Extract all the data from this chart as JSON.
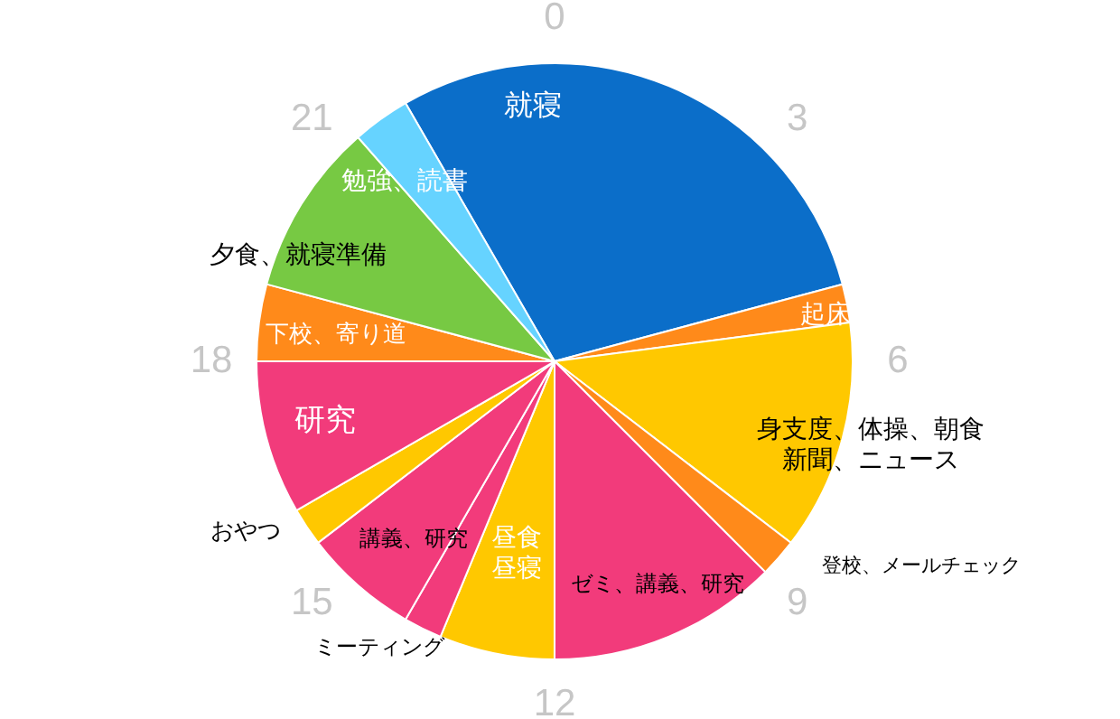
{
  "chart_data": {
    "type": "pie",
    "categories": [
      "就寝",
      "起床",
      "身支度、体操、朝食新聞、ニュース",
      "登校、メールチェック",
      "ゼミ、講義、研究",
      "昼食昼寝",
      "ミーティング",
      "講義、研究",
      "おやつ",
      "研究",
      "下校、寄り道",
      "夕食、就寝準備",
      "勉強、読書"
    ],
    "values": [
      29.17,
      2.08,
      12.5,
      2.08,
      12.5,
      6.25,
      2.08,
      6.25,
      2.08,
      8.33,
      4.17,
      9.37,
      3.13
    ],
    "colors": [
      "#0b6ec9",
      "#ff8a1a",
      "#ffc800",
      "#ff8a1a",
      "#f23b7b",
      "#ffc800",
      "#f23b7b",
      "#f23b7b",
      "#ffc800",
      "#f23b7b",
      "#ff8a1a",
      "#77c943",
      "#66d3ff"
    ],
    "annotations": [
      "0",
      "3",
      "6",
      "9",
      "12",
      "15",
      "18",
      "21"
    ]
  }
}
